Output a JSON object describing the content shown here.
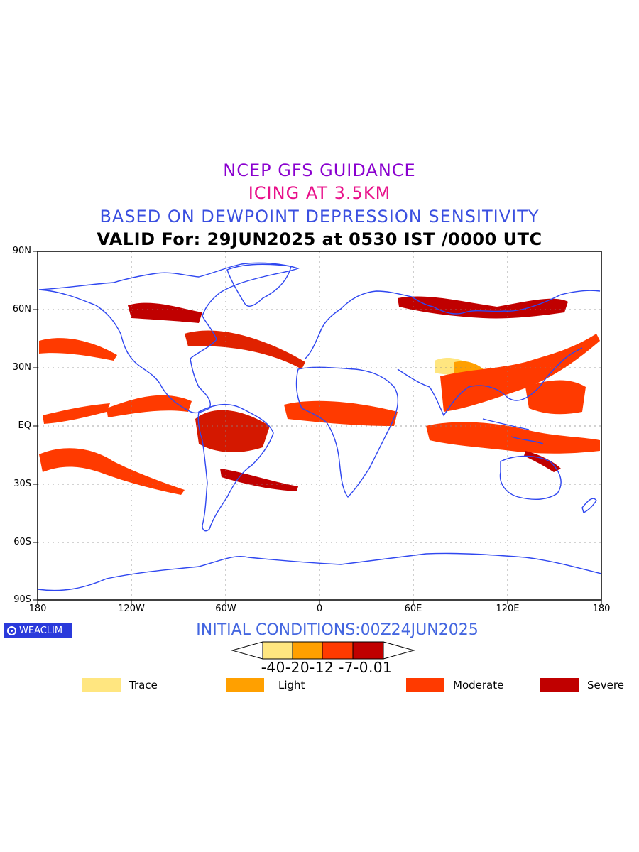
{
  "titles": {
    "line1": "NCEP GFS GUIDANCE",
    "line2": "ICING AT 3.5KM",
    "line3": "BASED ON DEWPOINT DEPRESSION SENSITIVITY",
    "line4": "VALID For: 29JUN2025 at 0530 IST /0000 UTC"
  },
  "colors": {
    "title1": "#8a00cf",
    "title2": "#e8108a",
    "title3": "#3a4fe0",
    "coastline": "#2f47f0",
    "trace": "#ffe680",
    "light": "#ffa000",
    "moderate": "#ff3a00",
    "severe": "#c00000"
  },
  "axes": {
    "lat_labels": [
      "90N",
      "60N",
      "30N",
      "EQ",
      "30S",
      "60S",
      "90S"
    ],
    "lon_labels": [
      "180",
      "120W",
      "60W",
      "0",
      "60E",
      "120E",
      "180"
    ]
  },
  "branding": {
    "label": "WEACLIM"
  },
  "initial_conditions": "INITIAL CONDITIONS:00Z24JUN2025",
  "colorbar": {
    "ticks": "-40-20-12 -7-0.01"
  },
  "legend": [
    {
      "label": "Trace",
      "color": "#ffe680"
    },
    {
      "label": "Light",
      "color": "#ffa000"
    },
    {
      "label": "Moderate",
      "color": "#ff3a00"
    },
    {
      "label": "Severe",
      "color": "#c00000"
    }
  ]
}
